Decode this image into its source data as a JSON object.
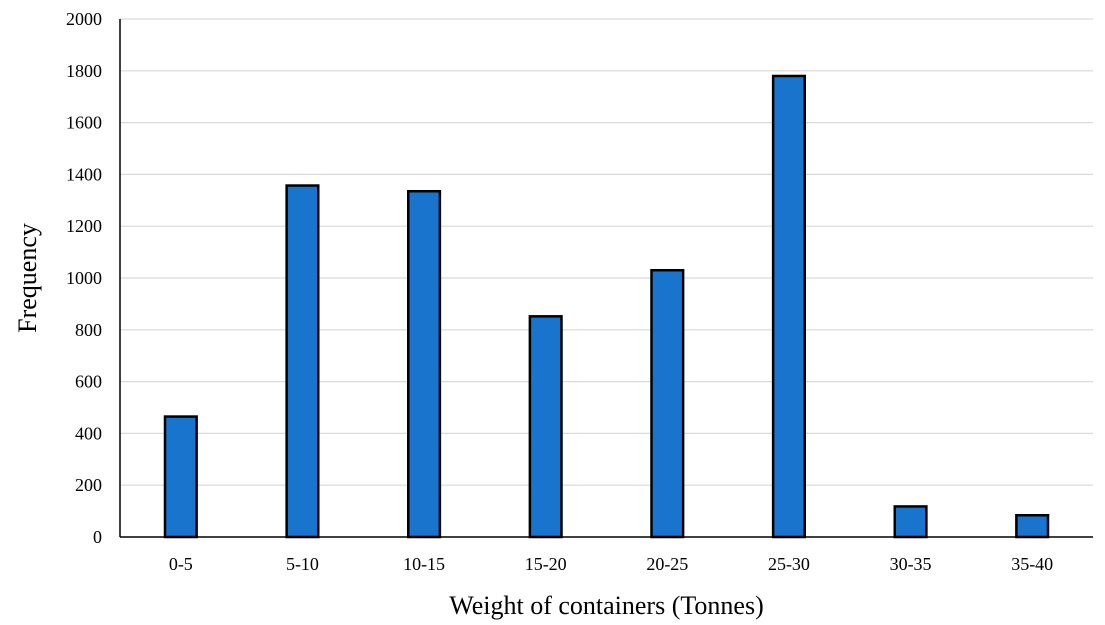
{
  "chart_data": {
    "type": "bar",
    "title": "",
    "xlabel": "Weight of containers (Tonnes)",
    "ylabel": "Frequency",
    "categories": [
      "0-5",
      "5-10",
      "10-15",
      "15-20",
      "20-25",
      "25-30",
      "30-35",
      "35-40"
    ],
    "values": [
      465,
      1357,
      1335,
      852,
      1030,
      1780,
      118,
      84
    ],
    "ylim": [
      0,
      2000
    ],
    "yticks": [
      0,
      200,
      400,
      600,
      800,
      1000,
      1200,
      1400,
      1600,
      1800,
      2000
    ],
    "grid": "horizontal",
    "legend": "none",
    "bar_color": "#1874cd"
  }
}
